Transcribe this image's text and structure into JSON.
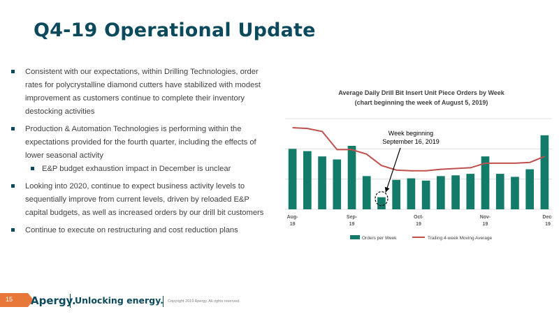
{
  "slide": {
    "title": "Q4-19 Operational Update",
    "page_number": "15",
    "bullets": [
      "Consistent with our expectations, within Drilling Technologies, order rates for polycrystalline diamond cutters have stabilized with modest improvement as customers continue to complete their inventory destocking activities",
      "Production & Automation Technologies is performing within the expectations provided for the fourth quarter, including the effects of lower seasonal activity",
      "Looking into 2020, continue to expect business activity levels to sequentially improve from current levels, driven by reloaded E&P capital budgets, as well as increased orders by our drill bit customers",
      "Continue to execute on restructuring and cost reduction plans"
    ],
    "sub_bullet": "E&P budget exhaustion impact in December is unclear"
  },
  "footer": {
    "logo": "Apergy.",
    "tagline": "Unlocking energy.",
    "copyright": "Copyright 2019 Apergy. All rights reserved."
  },
  "colors": {
    "title": "#0b4a5c",
    "bars": "#137b69",
    "line": "#c0504d",
    "footer_accent": "#e8773a"
  },
  "chart_data": {
    "type": "bar",
    "title": "Average Daily Drill Bit Insert Unit Piece Orders by Week",
    "subtitle": "(chart beginning the week of August 5, 2019)",
    "xlabel": "",
    "ylabel": "",
    "x_tick_labels": [
      {
        "index": 0,
        "lines": [
          "Aug-",
          "19"
        ]
      },
      {
        "index": 4,
        "lines": [
          "Sep-",
          "19"
        ]
      },
      {
        "index": 8.5,
        "lines": [
          "Oct-",
          "19"
        ]
      },
      {
        "index": 13,
        "lines": [
          "Nov-",
          "19"
        ]
      },
      {
        "index": 17.6,
        "lines": [
          "Dec-",
          "19"
        ]
      }
    ],
    "ylim": [
      0,
      120
    ],
    "gridlines": [
      0,
      40,
      80,
      120
    ],
    "grid": true,
    "legend_position": "bottom",
    "series": [
      {
        "name": "Orders per Week",
        "type": "bar",
        "values": [
          80,
          77,
          70,
          66,
          84,
          44,
          16,
          39,
          41,
          38,
          44,
          45,
          47,
          70,
          47,
          43,
          53,
          98
        ]
      },
      {
        "name": "Trailing 4-week Moving Average",
        "type": "line",
        "values": [
          108,
          107,
          103,
          79,
          79,
          73,
          58,
          52,
          51,
          51,
          53,
          54,
          55,
          61,
          61,
          61,
          62,
          70
        ]
      }
    ],
    "annotation": {
      "text_lines": [
        "Week beginning",
        "September 16, 2019"
      ],
      "target_index": 6
    }
  }
}
